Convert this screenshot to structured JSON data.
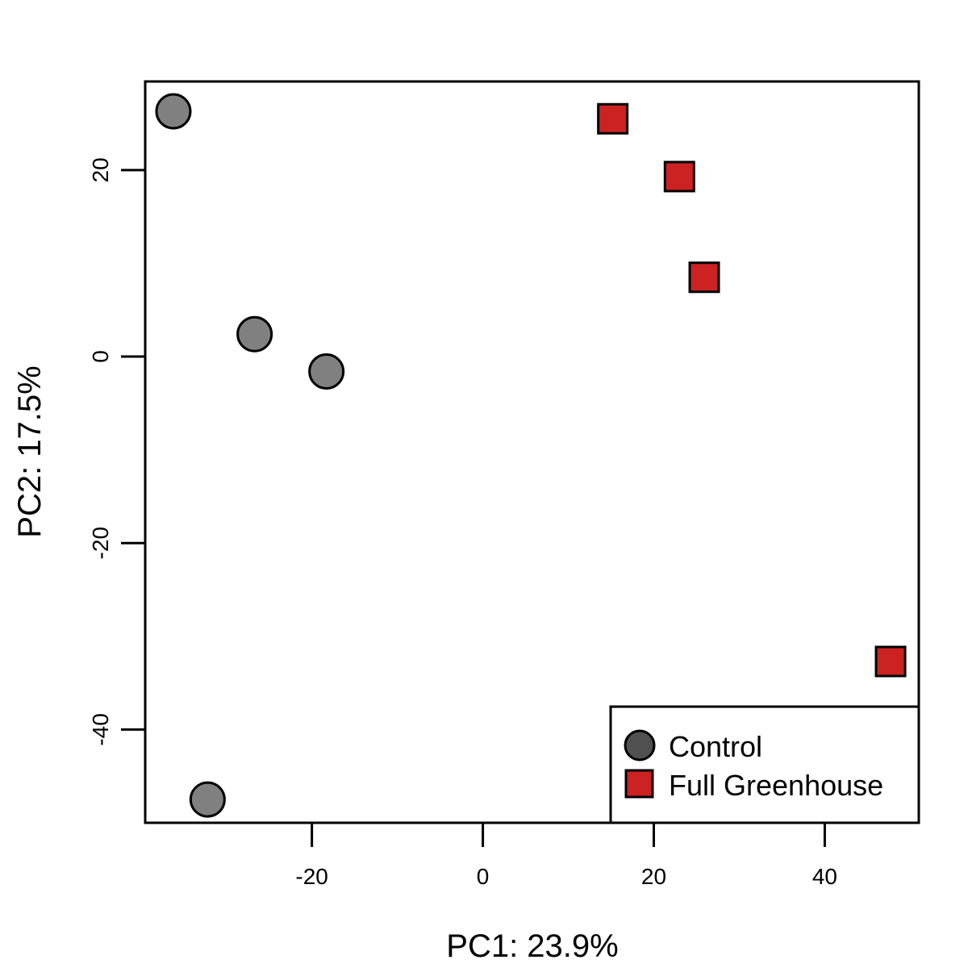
{
  "chart_data": {
    "type": "scatter",
    "title": "",
    "xlabel": "PC1: 23.9%",
    "ylabel": "PC2: 17.5%",
    "xlim": [
      -39.5,
      51
    ],
    "ylim": [
      -50,
      29.5
    ],
    "xticks": [
      -20,
      0,
      20,
      40
    ],
    "yticks": [
      -40,
      -20,
      0,
      20
    ],
    "xtick_labels": [
      "-20",
      "0",
      "20",
      "40"
    ],
    "ytick_labels": [
      "-40",
      "-20",
      "0",
      "20"
    ],
    "grid": false,
    "legend_position": "bottom-right",
    "series": [
      {
        "name": "Control",
        "marker": "circle",
        "color": "#808080",
        "legend_color": "#505050",
        "points": [
          {
            "x": -36.2,
            "y": 26.3
          },
          {
            "x": -26.7,
            "y": 2.4
          },
          {
            "x": -18.3,
            "y": -1.6
          },
          {
            "x": -32.2,
            "y": -47.5
          }
        ]
      },
      {
        "name": "Full Greenhouse",
        "marker": "square",
        "color": "#cc2222",
        "legend_color": "#cc2222",
        "points": [
          {
            "x": 15.2,
            "y": 25.5
          },
          {
            "x": 23.0,
            "y": 19.3
          },
          {
            "x": 25.9,
            "y": 8.5
          },
          {
            "x": 47.7,
            "y": -32.7
          }
        ]
      }
    ]
  }
}
